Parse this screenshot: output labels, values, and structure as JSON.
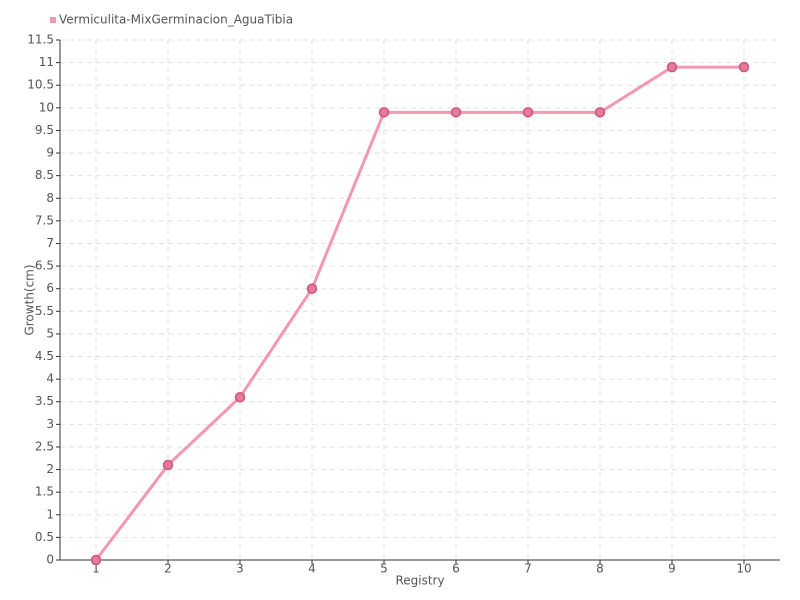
{
  "chart_data": {
    "type": "line",
    "x_label": "Registry",
    "y_label": "Growth(cm)",
    "x": [
      1,
      2,
      3,
      4,
      5,
      6,
      7,
      8,
      9,
      10
    ],
    "xlim": [
      0.5,
      10.5
    ],
    "xticks": [
      1,
      2,
      3,
      4,
      5,
      6,
      7,
      8,
      9,
      10
    ],
    "ylim": [
      0,
      11.5
    ],
    "yticks": [
      0,
      0.5,
      1,
      1.5,
      2,
      2.5,
      3,
      3.5,
      4,
      4.5,
      5,
      5.5,
      6,
      6.5,
      7,
      7.5,
      8,
      8.5,
      9,
      9.5,
      10,
      10.5,
      11,
      11.5
    ],
    "grid": true,
    "legend": "top-left",
    "series": [
      {
        "name": "Vermiculita-MixGerminacion_AguaTibia",
        "color": "#f497b0",
        "values": [
          0,
          2.1,
          3.6,
          6.0,
          9.9,
          9.9,
          9.9,
          9.9,
          10.9,
          10.9
        ]
      }
    ]
  }
}
